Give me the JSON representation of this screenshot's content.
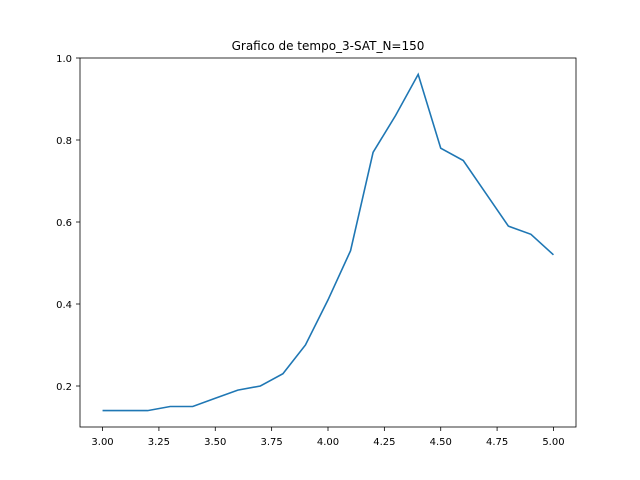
{
  "chart_data": {
    "type": "line",
    "title": "Grafico de tempo_3-SAT_N=150",
    "xlabel": "",
    "ylabel": "",
    "xlim": [
      2.9,
      5.1
    ],
    "ylim": [
      0.1,
      1.0
    ],
    "grid": false,
    "x_ticks": [
      3.0,
      3.25,
      3.5,
      3.75,
      4.0,
      4.25,
      4.5,
      4.75,
      5.0
    ],
    "x_tick_labels": [
      "3.00",
      "3.25",
      "3.50",
      "3.75",
      "4.00",
      "4.25",
      "4.50",
      "4.75",
      "5.00"
    ],
    "y_ticks": [
      0.2,
      0.4,
      0.6,
      0.8,
      1.0
    ],
    "y_tick_labels": [
      "0.2",
      "0.4",
      "0.6",
      "0.8",
      "1.0"
    ],
    "line_color": "#1f77b4",
    "series": [
      {
        "x": [
          3.0,
          3.1,
          3.2,
          3.3,
          3.4,
          3.5,
          3.6,
          3.7,
          3.8,
          3.9,
          4.0,
          4.1,
          4.2,
          4.3,
          4.4,
          4.5,
          4.6,
          4.7,
          4.8,
          4.9,
          5.0
        ],
        "values": [
          0.14,
          0.14,
          0.14,
          0.15,
          0.15,
          0.17,
          0.19,
          0.2,
          0.23,
          0.3,
          0.41,
          0.53,
          0.77,
          0.86,
          0.96,
          0.78,
          0.75,
          0.67,
          0.59,
          0.57,
          0.52
        ]
      }
    ]
  }
}
